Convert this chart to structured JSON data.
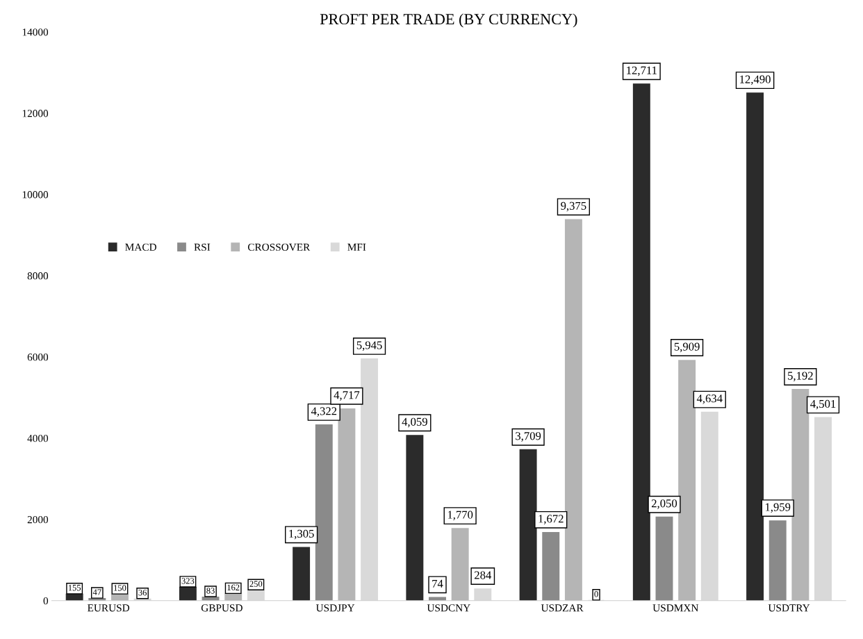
{
  "chart_data": {
    "type": "bar",
    "title": "PROFT PER TRADE (BY CURRENCY)",
    "categories": [
      "EURUSD",
      "GBPUSD",
      "USDJPY",
      "USDCNY",
      "USDZAR",
      "USDMXN",
      "USDTRY"
    ],
    "series": [
      {
        "name": "MACD",
        "color": "#2b2b2b",
        "values": [
          155,
          323,
          1305,
          4059,
          3709,
          12711,
          12490
        ],
        "value_labels": [
          "155",
          "323",
          "1,305",
          "4,059",
          "3,709",
          "12,711",
          "12,490"
        ]
      },
      {
        "name": "RSI",
        "color": "#8a8a8a",
        "values": [
          47,
          83,
          4322,
          74,
          1672,
          2050,
          1959
        ],
        "value_labels": [
          "47",
          "83",
          "4,322",
          "74",
          "1,672",
          "2,050",
          "1,959"
        ]
      },
      {
        "name": "CROSSOVER",
        "color": "#b5b5b5",
        "values": [
          150,
          162,
          4717,
          1770,
          9375,
          5909,
          5192
        ],
        "value_labels": [
          "150",
          "162",
          "4,717",
          "1,770",
          "9,375",
          "5,909",
          "5,192"
        ]
      },
      {
        "name": "MFI",
        "color": "#d9d9d9",
        "values": [
          36,
          250,
          5945,
          284,
          0,
          4634,
          4501
        ],
        "value_labels": [
          "36",
          "250",
          "5,945",
          "284",
          "0",
          "4,634",
          "4,501"
        ]
      }
    ],
    "ylim": [
      0,
      14000
    ],
    "yticks": [
      0,
      2000,
      4000,
      6000,
      8000,
      10000,
      12000,
      14000
    ],
    "grid": false,
    "legend": "left"
  }
}
